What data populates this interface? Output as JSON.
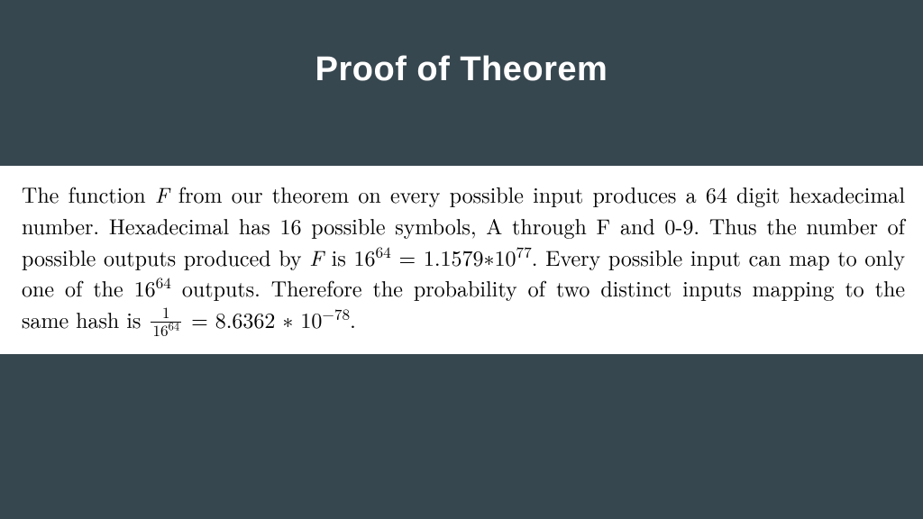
{
  "slide": {
    "title": "Proof of Theorem",
    "background_color": "#37474f",
    "title_color": "#ffffff",
    "title_fontsize": 38,
    "content_background": "#ffffff",
    "content_text_color": "#000000",
    "content_fontsize": 24
  },
  "proof": {
    "text_parts": {
      "p1": "The function ",
      "var_F": "F",
      "p2": " from our theorem on every possible input produces a 64 digit hexadecimal number. Hexadecimal has 16 possible symbols, A through F and 0-9. Thus the number of possible outputs produced by ",
      "p3": " is 16",
      "exp64_a": "64",
      "p4": " = 1.1579∗10",
      "exp77": "77",
      "p5": ". Every possible input can map to only one of the 16",
      "exp64_b": "64",
      "p6": " outputs. Therefore the probability of two distinct inputs mapping to the same hash is ",
      "frac_num": "1",
      "frac_den_base": "16",
      "frac_den_exp": "64",
      "p7": " = 8.6362 ∗ 10",
      "exp_neg78": "−78",
      "p8": "."
    }
  }
}
